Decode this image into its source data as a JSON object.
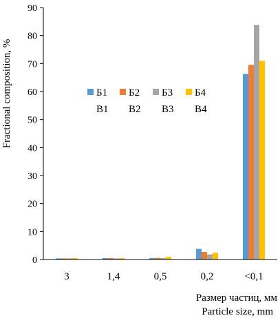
{
  "chart_data": {
    "type": "bar",
    "categories": [
      "3",
      "1,4",
      "0,5",
      "0,2",
      "<0,1"
    ],
    "series": [
      {
        "name": "Б1 B1",
        "legend_line1": "Б1",
        "legend_line2": "B1",
        "color": "#5B9BD5",
        "values": [
          0.4,
          0.5,
          0.5,
          3.8,
          66.3
        ]
      },
      {
        "name": "Б2 B2",
        "legend_line1": "Б2",
        "legend_line2": "B2",
        "color": "#ED7D31",
        "values": [
          0.4,
          0.5,
          0.6,
          2.7,
          69.5
        ]
      },
      {
        "name": "Б3 B3",
        "legend_line1": "Б3",
        "legend_line2": "B3",
        "color": "#A5A5A5",
        "values": [
          0.4,
          0.4,
          0.5,
          1.8,
          83.8
        ]
      },
      {
        "name": "Б4 B4",
        "legend_line1": "Б4",
        "legend_line2": "B4",
        "color": "#FFC000",
        "values": [
          0.5,
          0.5,
          0.9,
          2.4,
          71.0
        ]
      }
    ],
    "extra_values_note_free": true,
    "ylim": [
      0,
      90
    ],
    "yticks": [
      0,
      10,
      20,
      30,
      40,
      50,
      60,
      70,
      80,
      90
    ],
    "ylabel": "Fractional composition, %",
    "xlabel_line1": "Размер частиц, мм",
    "xlabel_line2": "Particle size, mm",
    "grid": false,
    "legend_position": "center-right"
  }
}
